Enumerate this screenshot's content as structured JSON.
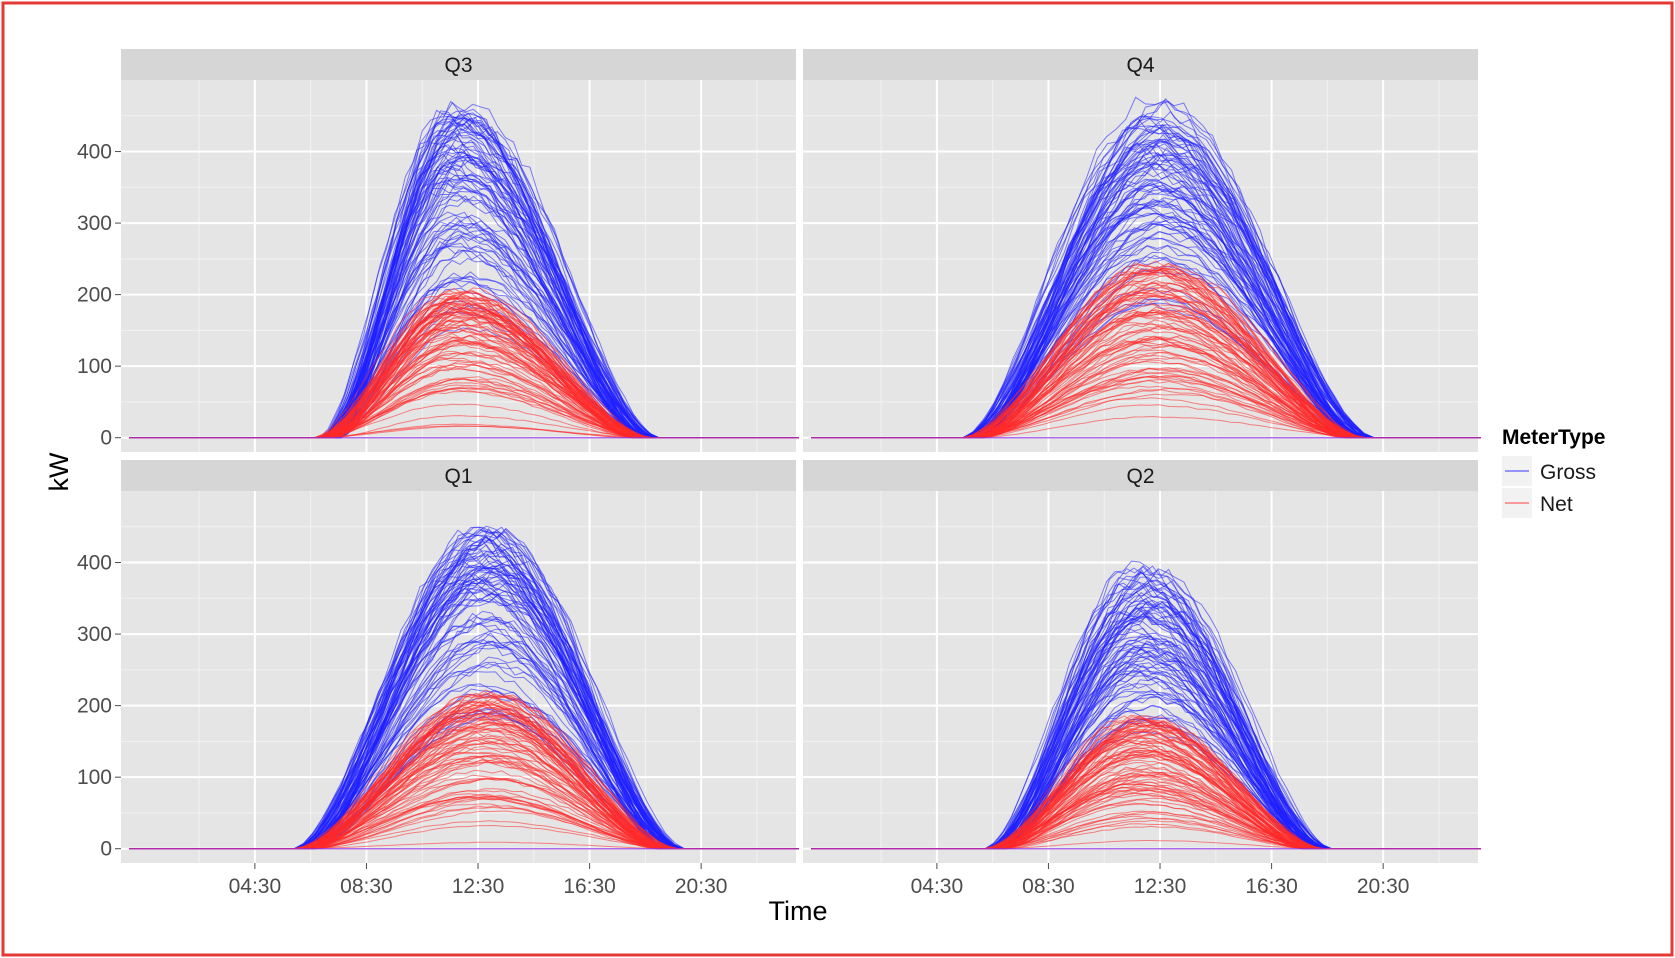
{
  "chart_data": {
    "type": "line",
    "xlabel": "Time",
    "ylabel": "kW",
    "x_ticks": [
      "04:30",
      "08:30",
      "12:30",
      "16:30",
      "20:30"
    ],
    "x_range_hours": [
      0,
      24
    ],
    "y_ticks": [
      0,
      100,
      200,
      300,
      400
    ],
    "ylim": [
      -20,
      500
    ],
    "grid": true,
    "colors": {
      "Gross": "#1f1fff",
      "Net": "#ff2a2a",
      "panel_bg": "#e5e5e5",
      "strip_bg": "#d6d6d6",
      "frame": "#e53935"
    },
    "legend": {
      "title": "MeterType",
      "position": "right",
      "entries": [
        "Gross",
        "Net"
      ]
    },
    "panels": [
      {
        "strip": "Q3",
        "gross": {
          "start": 7.2,
          "end": 18.6,
          "peak_hour": 11.8,
          "peak_min": 140,
          "peak_max": 465,
          "lines": 90
        },
        "net": {
          "start": 7.0,
          "end": 18.4,
          "peak_hour": 11.8,
          "peak_min": 8,
          "peak_max": 205,
          "lines": 90
        }
      },
      {
        "strip": "Q4",
        "gross": {
          "start": 5.8,
          "end": 19.8,
          "peak_hour": 12.4,
          "peak_min": 150,
          "peak_max": 470,
          "lines": 90
        },
        "net": {
          "start": 5.8,
          "end": 19.5,
          "peak_hour": 12.4,
          "peak_min": 8,
          "peak_max": 245,
          "lines": 90
        }
      },
      {
        "strip": "Q1",
        "gross": {
          "start": 6.3,
          "end": 19.5,
          "peak_hour": 12.8,
          "peak_min": 150,
          "peak_max": 450,
          "lines": 90
        },
        "net": {
          "start": 6.3,
          "end": 19.3,
          "peak_hour": 12.8,
          "peak_min": 8,
          "peak_max": 220,
          "lines": 90
        }
      },
      {
        "strip": "Q2",
        "gross": {
          "start": 6.6,
          "end": 18.3,
          "peak_hour": 11.9,
          "peak_min": 150,
          "peak_max": 395,
          "lines": 90
        },
        "net": {
          "start": 6.6,
          "end": 18.0,
          "peak_hour": 11.9,
          "peak_min": 8,
          "peak_max": 185,
          "lines": 90
        }
      }
    ]
  }
}
